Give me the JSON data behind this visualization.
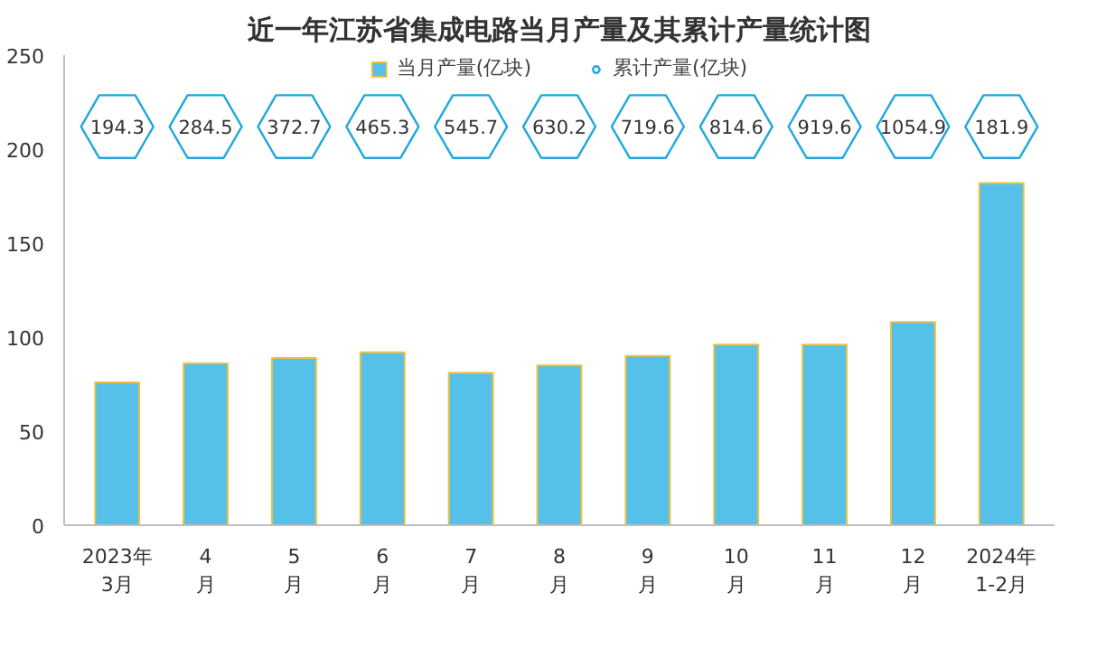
{
  "chart_data": {
    "type": "bar",
    "title": "近一年江苏省集成电路当月产量及其累计产量统计图",
    "categories": [
      "2023年3月",
      "4月",
      "5月",
      "6月",
      "7月",
      "8月",
      "9月",
      "10月",
      "11月",
      "12月",
      "2024年1-2月"
    ],
    "series": [
      {
        "name": "当月产量(亿块)",
        "type": "bar",
        "color": "#56c1e8",
        "values": [
          76,
          86,
          89,
          92,
          81,
          85,
          90,
          96,
          96,
          108,
          182
        ]
      },
      {
        "name": "累计产量(亿块)",
        "type": "scatter",
        "color": "#1fa7e0",
        "marker": "hex",
        "values": [
          null,
          null,
          null,
          null,
          null,
          null,
          null,
          null,
          null,
          null,
          null
        ],
        "value_labels": [
          "194.3",
          "284.5",
          "372.7",
          "465.3",
          "545.7",
          "630.2",
          "719.6",
          "814.6",
          "919.6",
          "1054.9",
          "181.9"
        ]
      }
    ],
    "ylim": [
      0,
      250
    ],
    "yticks": [
      0,
      50,
      100,
      150,
      200,
      250
    ],
    "grid": false,
    "legend": "top"
  }
}
